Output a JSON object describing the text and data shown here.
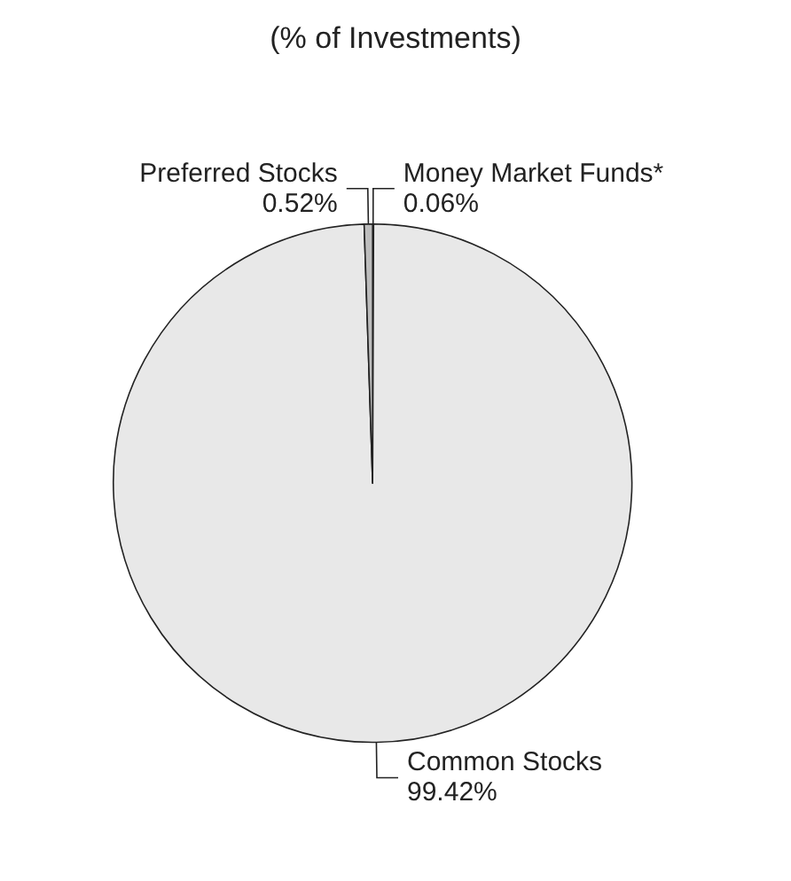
{
  "chart_data": {
    "type": "pie",
    "title": "(% of Investments)",
    "categories": [
      "Money Market Funds*",
      "Common Stocks",
      "Preferred Stocks"
    ],
    "values": [
      0.06,
      99.42,
      0.52
    ],
    "colors": [
      "#ffffff",
      "#e8e8e8",
      "#bdbdbd"
    ],
    "value_labels": [
      "0.06%",
      "99.42%",
      "0.52%"
    ]
  }
}
